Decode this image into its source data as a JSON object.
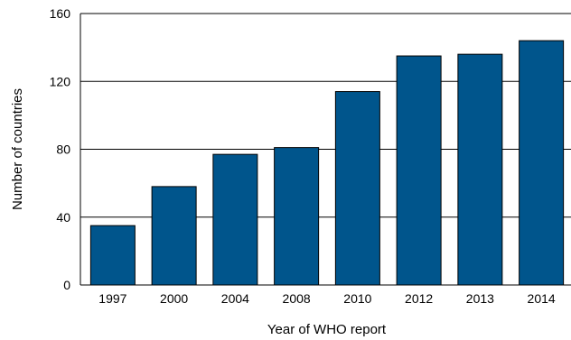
{
  "chart_data": {
    "type": "bar",
    "title": "",
    "xlabel": "Year of WHO report",
    "ylabel": "Number of countries",
    "categories": [
      "1997",
      "2000",
      "2004",
      "2008",
      "2010",
      "2012",
      "2013",
      "2014"
    ],
    "values": [
      35,
      58,
      77,
      81,
      114,
      135,
      136,
      144
    ],
    "ylim": [
      0,
      160
    ],
    "yticks": [
      "0",
      "40",
      "80",
      "120",
      "160"
    ],
    "grid": "horizontal",
    "legend": "none",
    "colors": {
      "bar": "#00558C",
      "bar_outline": "#000000",
      "grid": "#000000"
    }
  }
}
